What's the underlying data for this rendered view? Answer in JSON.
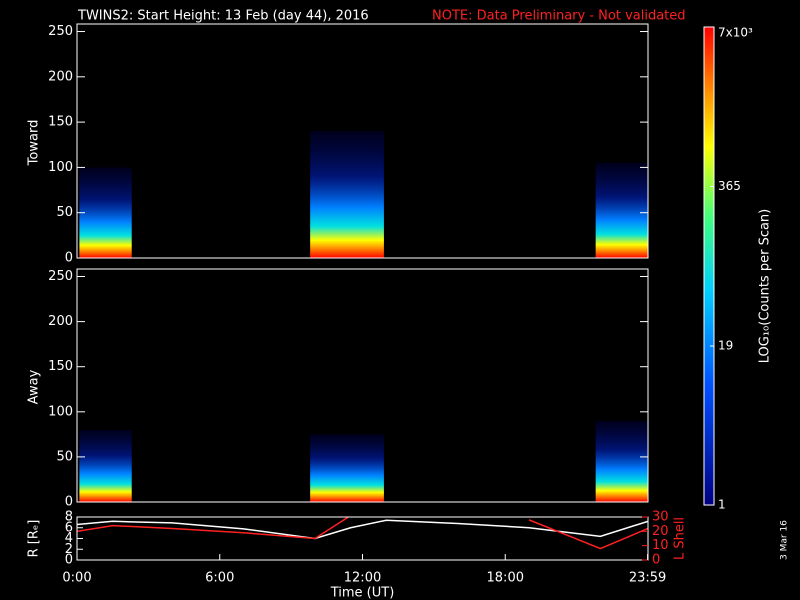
{
  "chart_data": [
    {
      "type": "spectrogram",
      "title": "TWINS2: Start Height: 13 Feb (day  44), 2016",
      "note": "NOTE: Data Preliminary - Not validated",
      "ylabel": "Toward",
      "ylim": [
        0,
        255
      ],
      "yticks": [
        0,
        50,
        100,
        150,
        200,
        250
      ],
      "xlim": [
        0,
        24
      ],
      "bursts": [
        {
          "start": 0.1,
          "end": 2.3,
          "top": 100
        },
        {
          "start": 9.8,
          "end": 12.9,
          "top": 140
        },
        {
          "start": 21.8,
          "end": 24,
          "top": 105
        }
      ]
    },
    {
      "type": "spectrogram",
      "ylabel": "Away",
      "ylim": [
        0,
        255
      ],
      "yticks": [
        0,
        50,
        100,
        150,
        200,
        250
      ],
      "xlim": [
        0,
        24
      ],
      "bursts": [
        {
          "start": 0.1,
          "end": 2.3,
          "top": 80
        },
        {
          "start": 9.8,
          "end": 12.9,
          "top": 75
        },
        {
          "start": 21.8,
          "end": 24,
          "top": 90
        }
      ]
    },
    {
      "type": "line",
      "ylabel": "R [Rₑ]",
      "y2label": "L Shell",
      "xlabel": "Time (UT)",
      "xlim": [
        0,
        24
      ],
      "xticks": [
        {
          "value": 0,
          "label": "0:00"
        },
        {
          "value": 6,
          "label": "6:00"
        },
        {
          "value": 12,
          "label": "12:00"
        },
        {
          "value": 18,
          "label": "18:00"
        },
        {
          "value": 23.983,
          "label": "23:59"
        }
      ],
      "ylim": [
        0,
        8
      ],
      "yticks": [
        0,
        2,
        4,
        6,
        8
      ],
      "y2lim": [
        0,
        30
      ],
      "y2ticks": [
        0,
        10,
        20,
        30
      ],
      "x": [
        0,
        1.5,
        4,
        7,
        10,
        11.5,
        13,
        16,
        19,
        22,
        24
      ],
      "series": [
        {
          "name": "R",
          "color": "#ffffff",
          "values": [
            6.6,
            7.2,
            6.9,
            5.8,
            4.0,
            6.0,
            7.4,
            6.8,
            6.0,
            4.4,
            7.2
          ]
        },
        {
          "name": "L Shell",
          "color": "#ff2020",
          "axis": "y2",
          "values": [
            20,
            24,
            22,
            19,
            15,
            31,
            null,
            null,
            28,
            8,
            22
          ]
        }
      ]
    },
    {
      "type": "colorbar",
      "label": "LOG₁₀(Counts per Scan)",
      "clim": [
        1,
        7000
      ],
      "log": true,
      "cticks": [
        1,
        19,
        365,
        {
          "value": 7000,
          "label": "7x10³"
        }
      ]
    }
  ],
  "date_stamp": "3 Mar 16"
}
